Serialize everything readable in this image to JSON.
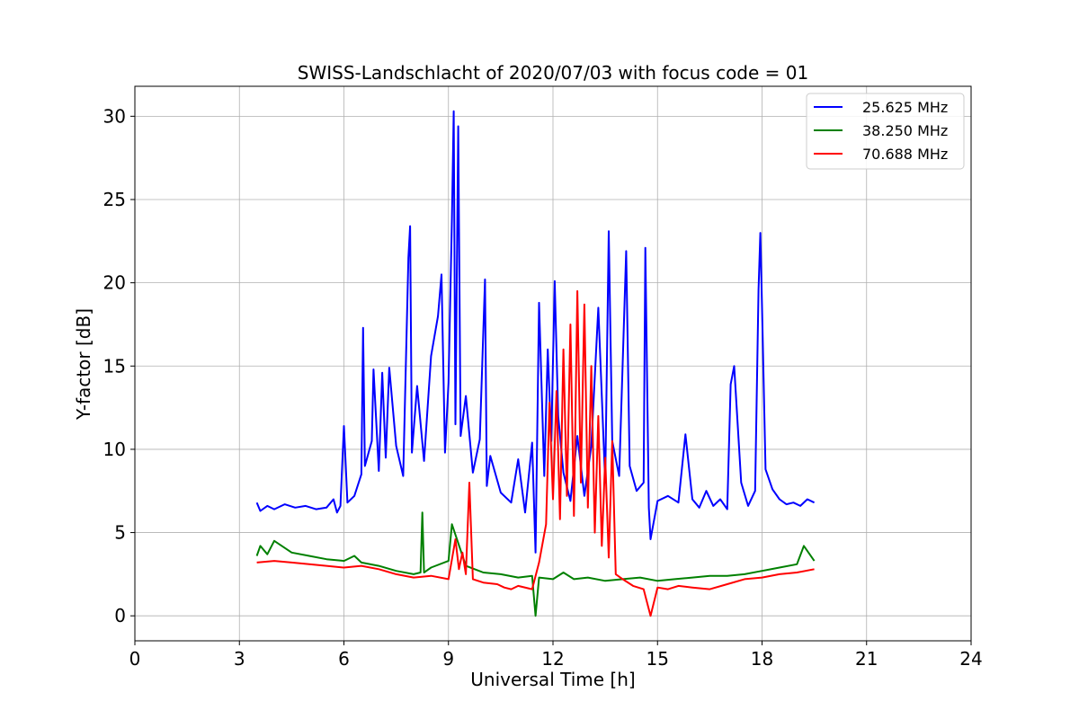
{
  "chart_data": {
    "type": "line",
    "title": "SWISS-Landschlacht of 2020/07/03 with focus code = 01",
    "xlabel": "Universal Time [h]",
    "ylabel": "Y-factor [dB]",
    "xlim": [
      0,
      24
    ],
    "ylim": [
      -1.5,
      31.8
    ],
    "xticks": [
      0,
      3,
      6,
      9,
      12,
      15,
      18,
      21,
      24
    ],
    "yticks": [
      0,
      5,
      10,
      15,
      20,
      25,
      30
    ],
    "grid": true,
    "legend_position": "top-right",
    "series": [
      {
        "name": "25.625 MHz",
        "color": "#0000ff",
        "x": [
          3.5,
          3.6,
          3.8,
          4.0,
          4.3,
          4.6,
          4.9,
          5.2,
          5.5,
          5.7,
          5.8,
          5.9,
          6.0,
          6.1,
          6.3,
          6.5,
          6.55,
          6.6,
          6.8,
          6.85,
          7.0,
          7.1,
          7.2,
          7.3,
          7.5,
          7.7,
          7.85,
          7.9,
          7.95,
          8.1,
          8.3,
          8.5,
          8.7,
          8.8,
          8.9,
          9.0,
          9.1,
          9.15,
          9.2,
          9.28,
          9.35,
          9.5,
          9.7,
          9.9,
          10.05,
          10.1,
          10.2,
          10.5,
          10.8,
          11.0,
          11.2,
          11.4,
          11.5,
          11.6,
          11.75,
          11.85,
          11.95,
          12.05,
          12.15,
          12.3,
          12.5,
          12.7,
          12.9,
          13.1,
          13.3,
          13.5,
          13.6,
          13.7,
          13.9,
          14.1,
          14.2,
          14.4,
          14.6,
          14.65,
          14.75,
          14.8,
          15.0,
          15.3,
          15.6,
          15.8,
          16.0,
          16.2,
          16.4,
          16.6,
          16.8,
          17.0,
          17.1,
          17.2,
          17.4,
          17.6,
          17.8,
          17.9,
          17.95,
          18.0,
          18.1,
          18.3,
          18.5,
          18.7,
          18.9,
          19.1,
          19.3,
          19.5
        ],
        "values": [
          6.8,
          6.3,
          6.6,
          6.4,
          6.7,
          6.5,
          6.6,
          6.4,
          6.5,
          7.0,
          6.2,
          6.6,
          11.4,
          6.8,
          7.2,
          8.5,
          17.3,
          9.0,
          10.5,
          14.8,
          8.7,
          14.6,
          9.5,
          14.9,
          10.2,
          8.4,
          21.5,
          23.4,
          9.8,
          13.8,
          9.3,
          15.6,
          18.0,
          20.5,
          9.8,
          14.0,
          23.8,
          30.3,
          11.5,
          29.4,
          10.8,
          13.2,
          8.6,
          10.6,
          20.2,
          7.8,
          9.6,
          7.4,
          6.8,
          9.4,
          6.2,
          10.4,
          3.8,
          18.8,
          8.4,
          16.0,
          10.5,
          20.1,
          12.0,
          8.6,
          6.9,
          10.8,
          7.2,
          10.2,
          18.5,
          8.0,
          23.1,
          10.5,
          8.4,
          21.9,
          9.0,
          7.5,
          8.0,
          22.1,
          6.5,
          4.6,
          6.9,
          7.2,
          6.8,
          10.9,
          7.0,
          6.5,
          7.5,
          6.6,
          7.0,
          6.4,
          13.9,
          15.0,
          8.0,
          6.6,
          7.5,
          19.6,
          23.0,
          18.5,
          8.8,
          7.6,
          7.0,
          6.7,
          6.8,
          6.6,
          7.0,
          6.8
        ]
      },
      {
        "name": "38.250 MHz",
        "color": "#008000",
        "x": [
          3.5,
          3.6,
          3.8,
          4.0,
          4.5,
          5.0,
          5.5,
          6.0,
          6.3,
          6.5,
          7.0,
          7.5,
          8.0,
          8.2,
          8.25,
          8.3,
          8.5,
          9.0,
          9.1,
          9.5,
          10.0,
          10.5,
          11.0,
          11.4,
          11.5,
          11.6,
          12.0,
          12.3,
          12.6,
          13.0,
          13.5,
          14.0,
          14.5,
          15.0,
          15.5,
          16.0,
          16.5,
          17.0,
          17.5,
          18.0,
          18.5,
          19.0,
          19.2,
          19.5
        ],
        "values": [
          3.6,
          4.2,
          3.7,
          4.5,
          3.8,
          3.6,
          3.4,
          3.3,
          3.6,
          3.2,
          3.0,
          2.7,
          2.5,
          2.6,
          6.2,
          2.6,
          2.9,
          3.3,
          5.5,
          3.0,
          2.6,
          2.5,
          2.3,
          2.4,
          0.0,
          2.3,
          2.2,
          2.6,
          2.2,
          2.3,
          2.1,
          2.2,
          2.3,
          2.1,
          2.2,
          2.3,
          2.4,
          2.4,
          2.5,
          2.7,
          2.9,
          3.1,
          4.2,
          3.3
        ]
      },
      {
        "name": "70.688 MHz",
        "color": "#ff0000",
        "x": [
          3.5,
          4.0,
          4.5,
          5.0,
          5.5,
          6.0,
          6.5,
          7.0,
          7.5,
          8.0,
          8.5,
          9.0,
          9.2,
          9.3,
          9.4,
          9.5,
          9.6,
          9.7,
          10.0,
          10.4,
          10.6,
          10.8,
          11.0,
          11.4,
          11.6,
          11.8,
          11.9,
          12.0,
          12.1,
          12.2,
          12.3,
          12.4,
          12.5,
          12.6,
          12.7,
          12.8,
          12.9,
          13.0,
          13.1,
          13.2,
          13.3,
          13.4,
          13.5,
          13.6,
          13.7,
          13.8,
          14.0,
          14.3,
          14.6,
          14.8,
          15.0,
          15.3,
          15.6,
          16.0,
          16.5,
          17.0,
          17.5,
          18.0,
          18.5,
          19.0,
          19.5
        ],
        "values": [
          3.2,
          3.3,
          3.2,
          3.1,
          3.0,
          2.9,
          3.0,
          2.8,
          2.5,
          2.3,
          2.4,
          2.2,
          4.6,
          2.8,
          3.8,
          2.5,
          8.0,
          2.2,
          2.0,
          1.9,
          1.7,
          1.6,
          1.8,
          1.6,
          3.2,
          5.5,
          12.8,
          7.0,
          13.5,
          5.8,
          16.0,
          7.2,
          17.5,
          6.0,
          19.5,
          8.0,
          18.7,
          6.5,
          15.0,
          5.0,
          12.0,
          4.2,
          9.5,
          3.5,
          10.5,
          2.5,
          2.2,
          1.8,
          1.6,
          0.0,
          1.7,
          1.6,
          1.8,
          1.7,
          1.6,
          1.9,
          2.2,
          2.3,
          2.5,
          2.6,
          2.8
        ]
      }
    ]
  }
}
